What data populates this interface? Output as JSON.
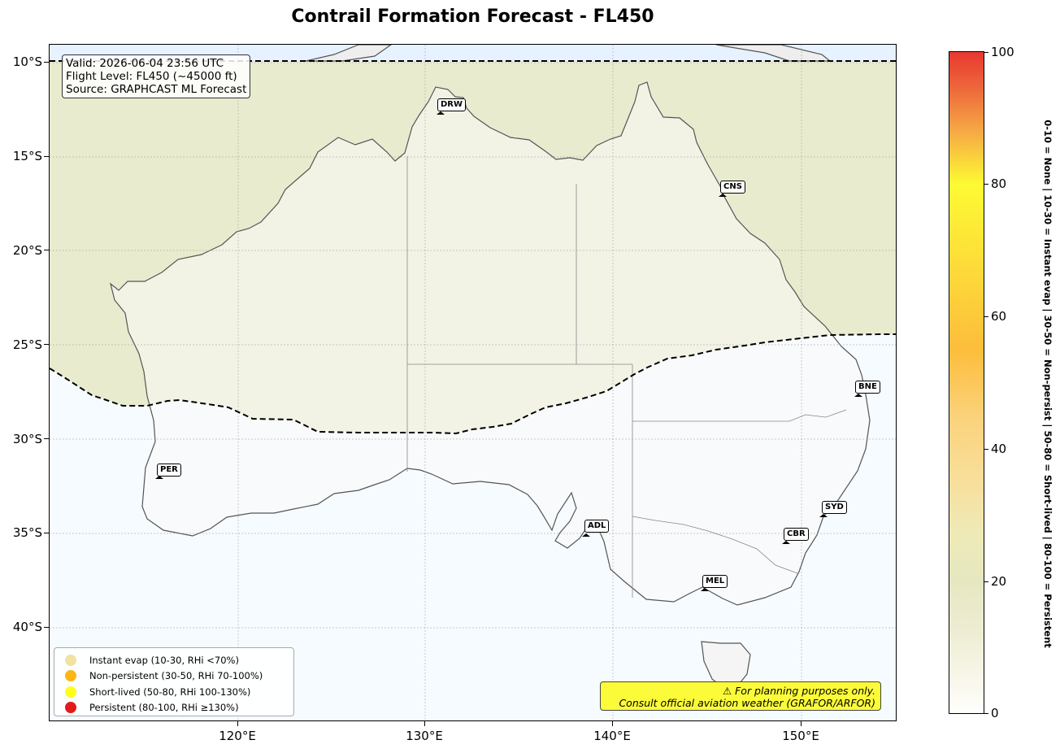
{
  "title": "Contrail Formation Forecast - FL450",
  "info": {
    "valid": "Valid: 2026-06-04 23:56 UTC",
    "flight_level": "Flight Level: FL450 (~45000 ft)",
    "source": "Source: GRAPHCAST ML Forecast"
  },
  "axes": {
    "lat_labels": [
      "10°S",
      "15°S",
      "20°S",
      "25°S",
      "30°S",
      "35°S",
      "40°S"
    ],
    "lon_labels": [
      "120°E",
      "130°E",
      "140°E",
      "150°E"
    ]
  },
  "cities": [
    {
      "code": "DRW"
    },
    {
      "code": "CNS"
    },
    {
      "code": "BNE"
    },
    {
      "code": "PER"
    },
    {
      "code": "ADL"
    },
    {
      "code": "SYD"
    },
    {
      "code": "CBR"
    },
    {
      "code": "MEL"
    }
  ],
  "legend": [
    {
      "label": "Instant evap (10-30, RHi <70%)",
      "color": "#f1e2a3"
    },
    {
      "label": "Non-persistent (30-50, RHi 70-100%)",
      "color": "#fdb614"
    },
    {
      "label": "Short-lived (50-80, RHi 100-130%)",
      "color": "#ffff1a"
    },
    {
      "label": "Persistent (80-100, RHi ≥130%)",
      "color": "#e31a1c"
    }
  ],
  "disclaimer": {
    "line1": "⚠ For planning purposes only.",
    "line2": "Consult official aviation weather (GRAFOR/ARFOR)"
  },
  "colorbar": {
    "ticks": [
      "0",
      "20",
      "40",
      "60",
      "80",
      "100"
    ],
    "description": "0-10 = None  |  10-30 = Instant evap  |  30-50 = Non-persist  |  50-80 = Short-lived  |  80-100 = Persistent"
  },
  "colors": {
    "contrail_zone": "#e9ebcf",
    "no_contrail": "#f6fbff",
    "land": "#fafafa",
    "boundary": "#000000"
  }
}
